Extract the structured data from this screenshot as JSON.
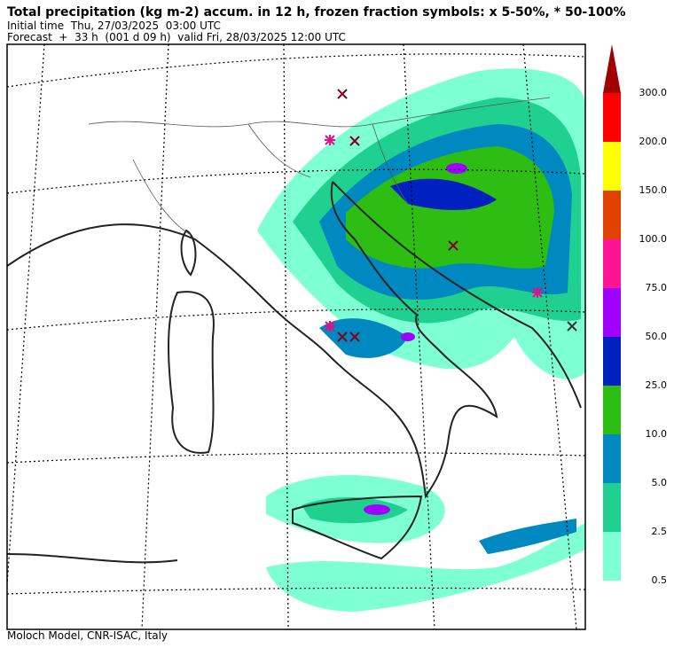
{
  "header": {
    "title": "Total precipitation (kg m-2) accum. in 12 h, frozen fraction symbols: x 5-50%, * 50-100%",
    "initial_time": "Initial time  Thu, 27/03/2025  03:00 UTC",
    "forecast": "Forecast  +  33 h  (001 d 09 h)  valid Fri, 28/03/2025 12:00 UTC"
  },
  "colorbar": {
    "ticks": [
      0.5,
      2.5,
      {
        "value": 5,
        "label": "5.0"
      },
      {
        "value": 10,
        "label": "10.0"
      },
      {
        "value": 25,
        "label": "25.0"
      },
      {
        "value": 50,
        "label": "50.0"
      },
      {
        "value": 75,
        "label": "75.0"
      },
      {
        "value": 100,
        "label": "100.0"
      },
      {
        "value": 150,
        "label": "150.0"
      },
      {
        "value": 200,
        "label": "200.0"
      },
      {
        "value": 300,
        "label": "300.0"
      }
    ],
    "colors": [
      "#7fffd4",
      "#20d090",
      "#0088c0",
      "#2ebd12",
      "#0020c0",
      "#a000ff",
      "#ff1493",
      "#e04000",
      "#ffff00",
      "#ff0000"
    ],
    "extend_color": "#a00000"
  },
  "footer": "Moloch Model, CNR-ISAC, Italy"
}
